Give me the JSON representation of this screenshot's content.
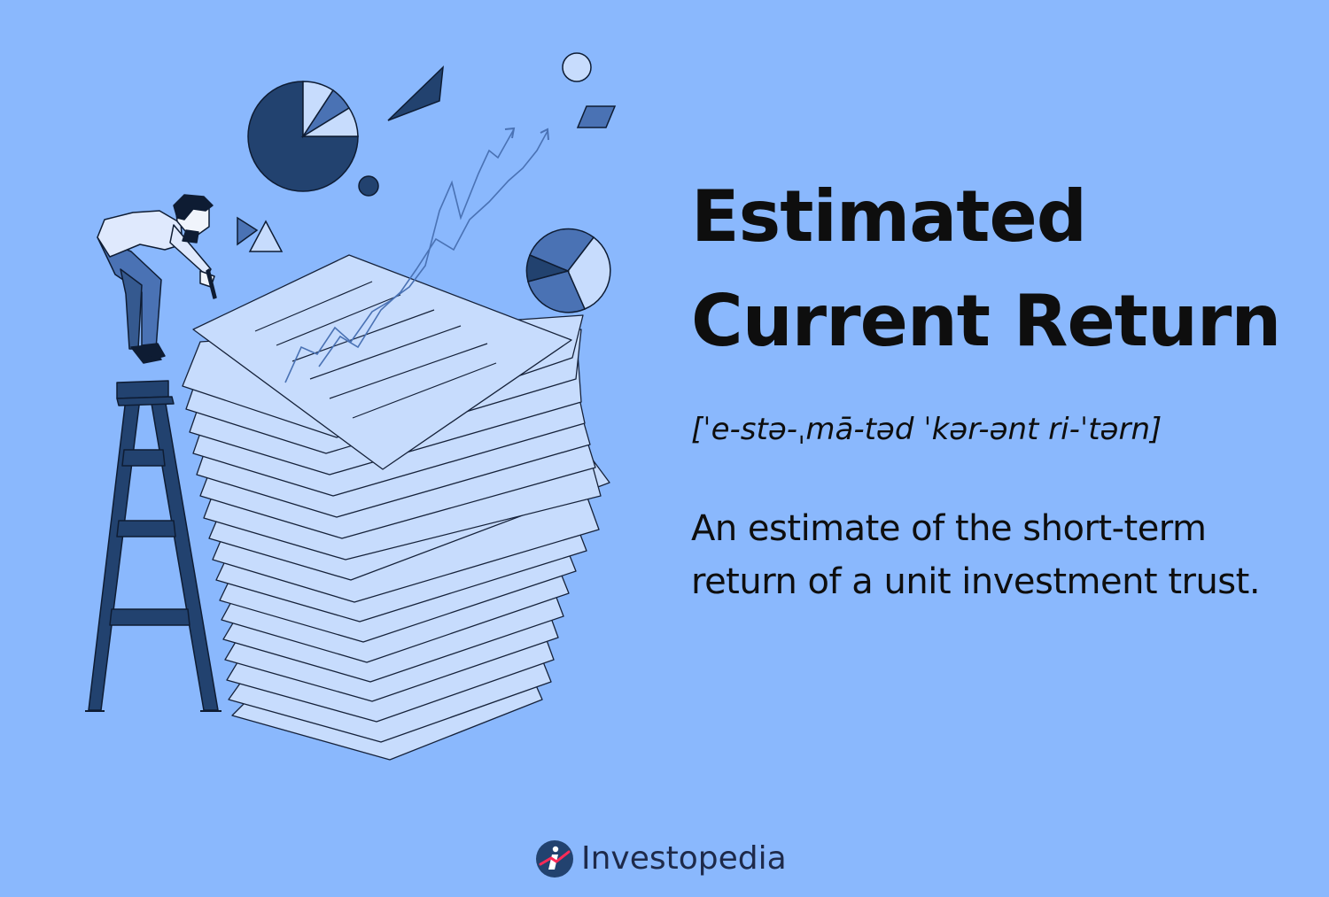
{
  "colors": {
    "background": "#8ab8fd",
    "paper": "#c7dcfd",
    "navy": "#22426f",
    "mid_blue": "#4a72b4",
    "light_blue": "#c7dcfd",
    "text": "#0e0e0e",
    "brand_text": "#1e2a4a"
  },
  "title": {
    "line1": "Estimated",
    "line2": "Current Return"
  },
  "pronunciation": "[ˈe-stə-ˌmā-təd ˈkər-ənt ri-ˈtərn]",
  "definition": {
    "line1": "An estimate of the short-term",
    "line2": "return of a unit investment trust."
  },
  "brand": {
    "name": "Investopedia",
    "icon": "investopedia-logo-icon"
  },
  "illustration": {
    "subject": "person-on-ladder-with-paper-stack",
    "icons": [
      "pie-chart-icon",
      "triangle-icon",
      "circle-icon",
      "rhombus-icon",
      "trend-arrow-icon"
    ]
  }
}
